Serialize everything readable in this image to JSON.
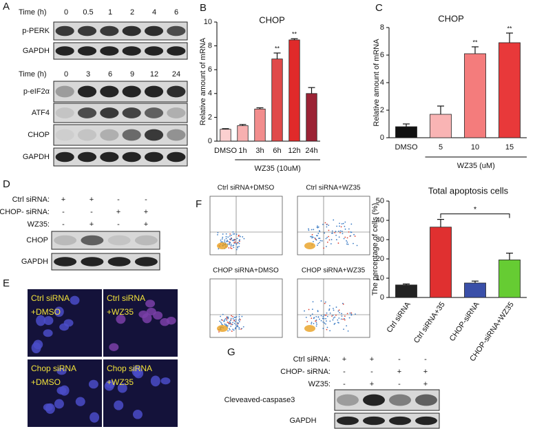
{
  "panel_a": {
    "letter": "A",
    "blots": [
      {
        "time_label": "Time (h)",
        "times": [
          "0",
          "0.5",
          "1",
          "2",
          "4",
          "6"
        ],
        "rows": [
          "p-PERK",
          "GAPDH"
        ]
      },
      {
        "time_label": "Time (h)",
        "times": [
          "0",
          "3",
          "6",
          "9",
          "12",
          "24"
        ],
        "rows": [
          "p-eIF2α",
          "ATF4",
          "CHOP",
          "GAPDH"
        ]
      }
    ]
  },
  "chart_data": [
    {
      "panel": "B",
      "type": "bar",
      "title": "CHOP",
      "y_label": "Relative amount of  mRNA",
      "categories": [
        "DMSO",
        "1h",
        "3h",
        "6h",
        "12h",
        "24h"
      ],
      "group_label": "WZ35 (10uM)",
      "values": [
        1.0,
        1.3,
        2.7,
        6.9,
        8.5,
        4.0
      ],
      "errors": [
        0.05,
        0.1,
        0.1,
        0.5,
        0.1,
        0.5
      ],
      "colors": [
        "#fbd0d0",
        "#f7b0b0",
        "#f28d8d",
        "#e04a4a",
        "#e02a2a",
        "#9b2335"
      ],
      "ylim": [
        0,
        10
      ],
      "yticks": [
        0,
        2,
        4,
        6,
        8,
        10
      ],
      "annotations": [
        {
          "text": "**",
          "x": "6h"
        },
        {
          "text": "**",
          "x": "12h"
        }
      ]
    },
    {
      "panel": "C",
      "type": "bar",
      "title": "CHOP",
      "y_label": "Relative amount of  mRNA",
      "categories": [
        "DMSO",
        "5",
        "10",
        "15"
      ],
      "group_label": "WZ35 (uM)",
      "values": [
        0.8,
        1.7,
        6.1,
        6.9
      ],
      "errors": [
        0.2,
        0.6,
        0.5,
        0.7
      ],
      "colors": [
        "#111111",
        "#f9b4b4",
        "#f47c7c",
        "#e8393a"
      ],
      "ylim": [
        0,
        8
      ],
      "yticks": [
        0,
        2,
        4,
        6,
        8
      ],
      "annotations": [
        {
          "text": "**",
          "x": "10"
        },
        {
          "text": "**",
          "x": "15"
        }
      ]
    },
    {
      "type": "bar",
      "title": "Total apoptosis cells",
      "y_label": "The percentage of cells (%)",
      "categories": [
        "Ctrl siRNA",
        "Ctrl siRNA+35",
        "CHOP-siRNA",
        "CHOP-siRNA+WZ35"
      ],
      "values": [
        6.5,
        36.5,
        7.5,
        19.5
      ],
      "errors": [
        0.5,
        4,
        1,
        3.5
      ],
      "colors": [
        "#222222",
        "#e03030",
        "#3a4fa8",
        "#66cc33"
      ],
      "ylim": [
        0,
        50
      ],
      "yticks": [
        0,
        10,
        20,
        30,
        40,
        50
      ],
      "annotations": [
        {
          "text": "*",
          "x": [
            "Ctrl siRNA+35",
            "CHOP-siRNA+WZ35"
          ]
        }
      ]
    }
  ],
  "panel_d": {
    "letter": "D",
    "conditions": [
      {
        "label": "Ctrl siRNA:",
        "signs": [
          "+",
          "+",
          "-",
          "-"
        ]
      },
      {
        "label": "CHOP- siRNA:",
        "signs": [
          "-",
          "-",
          "+",
          "+"
        ]
      },
      {
        "label": "WZ35:",
        "signs": [
          "-",
          "+",
          "-",
          "+"
        ]
      }
    ],
    "rows": [
      "CHOP",
      "GAPDH"
    ]
  },
  "panel_e": {
    "letter": "E",
    "images": [
      [
        "Ctrl siRNA",
        "+DMSO"
      ],
      [
        "Ctrl siRNA",
        "+WZ35"
      ],
      [
        "Chop siRNA",
        "+DMSO"
      ],
      [
        "Chop siRNA",
        "+WZ35"
      ]
    ]
  },
  "panel_f": {
    "letter": "F",
    "flow_titles": [
      "Ctrl siRNA+DMSO",
      "Ctrl siRNA+WZ35",
      "CHOP siRNA+DMSO",
      "CHOP siRNA+WZ35"
    ]
  },
  "panel_g": {
    "letter": "G",
    "conditions": [
      {
        "label": "Ctrl siRNA:",
        "signs": [
          "+",
          "+",
          "-",
          "-"
        ]
      },
      {
        "label": "CHOP- siRNA:",
        "signs": [
          "-",
          "-",
          "+",
          "+"
        ]
      },
      {
        "label": "WZ35:",
        "signs": [
          "-",
          "+",
          "-",
          "+"
        ]
      }
    ],
    "rows": [
      "Cleveaved-caspase3",
      "GAPDH"
    ]
  }
}
